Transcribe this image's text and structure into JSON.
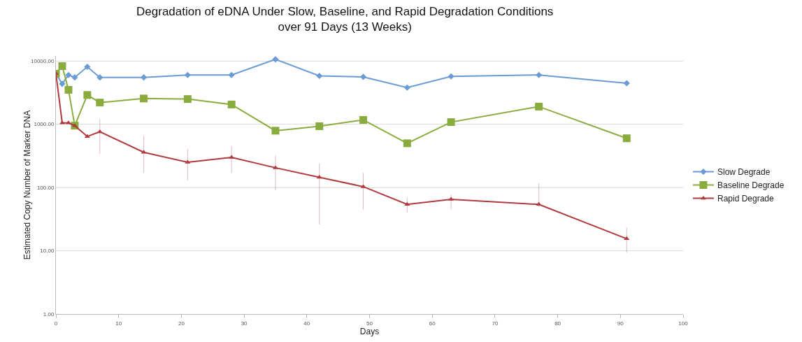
{
  "chart_data": {
    "type": "line",
    "title": "Degradation of eDNA Under Slow, Baseline, and Rapid Degradation Conditions over 91 Days (13 Weeks)",
    "xlabel": "Days",
    "ylabel": "Estimated Copy Number of Marker DNA",
    "x": [
      0,
      1,
      2,
      3,
      5,
      7,
      14,
      21,
      28,
      35,
      42,
      49,
      56,
      63,
      77,
      91
    ],
    "series": [
      {
        "name": "Slow Degrade",
        "color": "#6a9bd4",
        "marker": "diamond",
        "values": [
          6300,
          4350,
          6000,
          5500,
          8100,
          5500,
          5500,
          6000,
          6000,
          10600,
          5800,
          5600,
          3800,
          5700,
          6000,
          4450
        ]
      },
      {
        "name": "Baseline Degrade",
        "color": "#8aac3e",
        "marker": "square",
        "values": [
          6300,
          8300,
          3500,
          950,
          2900,
          2200,
          2550,
          2500,
          2050,
          790,
          930,
          1170,
          500,
          1080,
          1900,
          600
        ]
      },
      {
        "name": "Rapid Degrade",
        "color": "#b03a3e",
        "marker": "triangle",
        "values": [
          6300,
          1050,
          1050,
          950,
          640,
          760,
          360,
          250,
          300,
          205,
          145,
          103,
          54,
          65,
          54,
          15.5
        ],
        "errors": [
          null,
          null,
          null,
          null,
          null,
          [
            340,
            1200
          ],
          [
            170,
            650
          ],
          [
            130,
            410
          ],
          [
            170,
            450
          ],
          [
            90,
            320
          ],
          [
            26,
            240
          ],
          [
            45,
            170
          ],
          [
            40,
            69
          ],
          [
            45,
            76
          ],
          [
            49,
            117
          ],
          [
            9.3,
            23
          ]
        ]
      }
    ],
    "log": "y",
    "xlim": [
      0,
      100
    ],
    "xticks": [
      0,
      10,
      20,
      30,
      40,
      50,
      60,
      70,
      80,
      90,
      100
    ],
    "ylim": [
      1,
      12000
    ],
    "yticks": [
      {
        "value": 1,
        "label": "1.00"
      },
      {
        "value": 10,
        "label": "10.00"
      },
      {
        "value": 100,
        "label": "100.00"
      },
      {
        "value": 1000,
        "label": "1000.00"
      },
      {
        "value": 10000,
        "label": "10000.00"
      }
    ],
    "grid": "y",
    "legend": "right",
    "line_style": "solid"
  }
}
